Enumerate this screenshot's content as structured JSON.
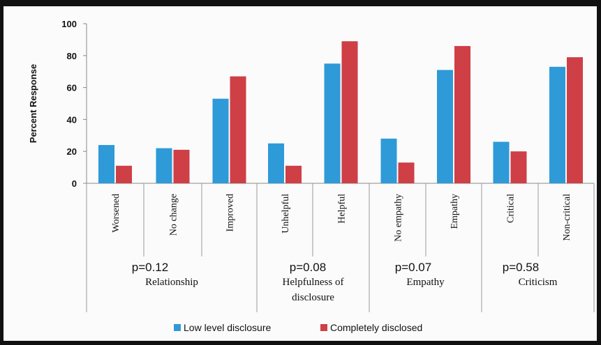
{
  "chart_data": {
    "type": "bar",
    "title": "",
    "ylabel": "Percent Response",
    "ylim": [
      0,
      100
    ],
    "yticks": [
      0,
      20,
      40,
      60,
      80,
      100
    ],
    "categories": [
      "Worsened",
      "No change",
      "Improved",
      "Unhelpful",
      "Helpful",
      "No empathy",
      "Empathy",
      "Critical",
      "Non-critical"
    ],
    "series": [
      {
        "name": "Low level disclosure",
        "color": "#2e9ad8",
        "values": [
          24,
          22,
          53,
          25,
          75,
          28,
          71,
          26,
          73
        ]
      },
      {
        "name": "Completely disclosed",
        "color": "#cf3f46",
        "values": [
          11,
          21,
          67,
          11,
          89,
          13,
          86,
          20,
          79
        ]
      }
    ],
    "groups": [
      {
        "label_lines": [
          "Relationship"
        ],
        "pvalue": "p=0.12",
        "categories": [
          0,
          1,
          2
        ]
      },
      {
        "label_lines": [
          "Helpfulness of",
          "disclosure"
        ],
        "pvalue": "p=0.08",
        "categories": [
          3,
          4
        ]
      },
      {
        "label_lines": [
          "Empathy"
        ],
        "pvalue": "p=0.07",
        "categories": [
          5,
          6
        ]
      },
      {
        "label_lines": [
          "Criticism"
        ],
        "pvalue": "p=0.58",
        "categories": [
          7,
          8
        ]
      }
    ],
    "legend_position": "bottom",
    "grid": false
  }
}
